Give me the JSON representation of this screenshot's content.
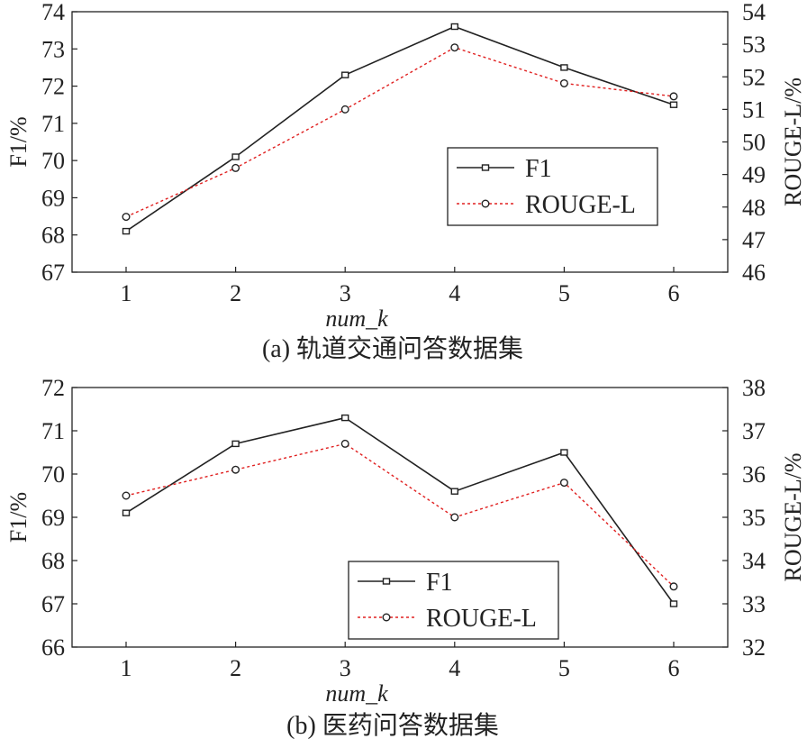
{
  "chart_data": [
    {
      "type": "line",
      "caption": "(a) 轨道交通问答数据集",
      "xlabel": "num_k",
      "ylabel_left": "F1/%",
      "ylabel_right": "ROUGE-L/%",
      "x": [
        1,
        2,
        3,
        4,
        5,
        6
      ],
      "x_ticks": [
        "1",
        "2",
        "3",
        "4",
        "5",
        "6"
      ],
      "ylim_left": [
        67,
        74
      ],
      "y_ticks_left": [
        "67",
        "68",
        "69",
        "70",
        "71",
        "72",
        "73",
        "74"
      ],
      "ylim_right": [
        46,
        54
      ],
      "y_ticks_right": [
        "46",
        "47",
        "48",
        "49",
        "50",
        "51",
        "52",
        "53",
        "54"
      ],
      "legend_position": "center-right",
      "series": [
        {
          "name": "F1",
          "axis": "left",
          "color": "#222222",
          "style": "solid",
          "marker": "square",
          "values": [
            68.1,
            70.1,
            72.3,
            73.6,
            72.5,
            71.5
          ]
        },
        {
          "name": "ROUGE-L",
          "axis": "right",
          "color": "#e02020",
          "style": "dotted",
          "marker": "circle",
          "values": [
            47.7,
            49.2,
            51.0,
            52.9,
            51.8,
            51.4
          ]
        }
      ]
    },
    {
      "type": "line",
      "caption": "(b) 医药问答数据集",
      "xlabel": "num_k",
      "ylabel_left": "F1/%",
      "ylabel_right": "ROUGE-L/%",
      "x": [
        1,
        2,
        3,
        4,
        5,
        6
      ],
      "x_ticks": [
        "1",
        "2",
        "3",
        "4",
        "5",
        "6"
      ],
      "ylim_left": [
        66,
        72
      ],
      "y_ticks_left": [
        "66",
        "67",
        "68",
        "69",
        "70",
        "71",
        "72"
      ],
      "ylim_right": [
        32,
        38
      ],
      "y_ticks_right": [
        "32",
        "33",
        "34",
        "35",
        "36",
        "37",
        "38"
      ],
      "legend_position": "lower-center",
      "series": [
        {
          "name": "F1",
          "axis": "left",
          "color": "#222222",
          "style": "solid",
          "marker": "square",
          "values": [
            69.1,
            70.7,
            71.3,
            69.6,
            70.5,
            67.0
          ]
        },
        {
          "name": "ROUGE-L",
          "axis": "right",
          "color": "#e02020",
          "style": "dotted",
          "marker": "circle",
          "values": [
            35.5,
            36.1,
            36.7,
            35.0,
            35.8,
            33.4
          ]
        }
      ]
    }
  ]
}
